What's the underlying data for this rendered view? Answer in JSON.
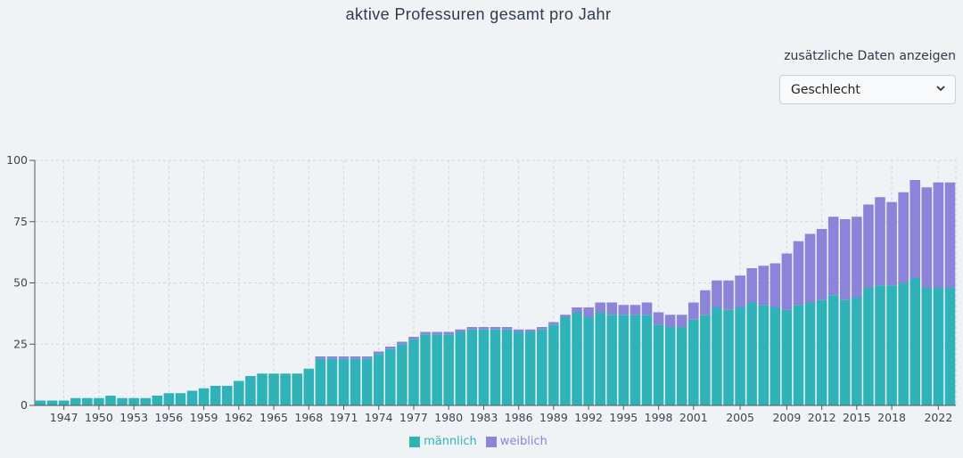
{
  "title": "aktive Professuren gesamt pro Jahr",
  "controls": {
    "label": "zusätzliche Daten anzeigen",
    "select_value": "Geschlecht",
    "select_icon": "chevron-down-icon"
  },
  "colors": {
    "maennlich": "#2fb3b9",
    "weiblich": "#8b84d8",
    "grid": "#cfd6dc",
    "axis": "#555555"
  },
  "chart_data": {
    "type": "bar",
    "stacked": true,
    "ylim": [
      0,
      100
    ],
    "yticks": [
      0,
      25,
      50,
      75,
      100
    ],
    "grid": true,
    "legend_position": "bottom",
    "x_tick_labels": [
      "1947",
      "1950",
      "1953",
      "1956",
      "1959",
      "1962",
      "1965",
      "1968",
      "1971",
      "1974",
      "1977",
      "1980",
      "1983",
      "1986",
      "1989",
      "1992",
      "1995",
      "1998",
      "2001",
      "2005",
      "2009",
      "2012",
      "2015",
      "2018",
      "2022"
    ],
    "categories": [
      "1945",
      "1946",
      "1947",
      "1948",
      "1949",
      "1950",
      "1951",
      "1952",
      "1953",
      "1954",
      "1955",
      "1956",
      "1957",
      "1958",
      "1959",
      "1960",
      "1961",
      "1962",
      "1963",
      "1964",
      "1965",
      "1966",
      "1967",
      "1968",
      "1969",
      "1970",
      "1971",
      "1972",
      "1973",
      "1974",
      "1975",
      "1976",
      "1977",
      "1978",
      "1979",
      "1980",
      "1981",
      "1982",
      "1983",
      "1984",
      "1985",
      "1986",
      "1987",
      "1988",
      "1989",
      "1990",
      "1991",
      "1992",
      "1993",
      "1994",
      "1995",
      "1996",
      "1997",
      "1998",
      "1999",
      "2000",
      "2001",
      "2002",
      "2003",
      "2004",
      "2005",
      "2006",
      "2007",
      "2008",
      "2009",
      "2010",
      "2011",
      "2012",
      "2013",
      "2014",
      "2015",
      "2016",
      "2017",
      "2018",
      "2019",
      "2020",
      "2021",
      "2022",
      "2023"
    ],
    "series": [
      {
        "name": "männlich",
        "values": [
          2,
          2,
          2,
          3,
          3,
          3,
          4,
          3,
          3,
          3,
          4,
          5,
          5,
          6,
          7,
          8,
          8,
          10,
          12,
          13,
          13,
          13,
          13,
          15,
          19,
          19,
          19,
          19,
          19,
          21,
          23,
          25,
          27,
          29,
          29,
          29,
          30,
          31,
          31,
          31,
          31,
          30,
          30,
          31,
          33,
          36,
          38,
          36,
          38,
          37,
          37,
          37,
          37,
          33,
          32,
          32,
          35,
          37,
          40,
          39,
          40,
          42,
          41,
          40,
          39,
          41,
          42,
          43,
          45,
          43,
          44,
          48,
          49,
          49,
          50,
          52,
          48,
          48,
          48
        ]
      },
      {
        "name": "weiblich",
        "values": [
          0,
          0,
          0,
          0,
          0,
          0,
          0,
          0,
          0,
          0,
          0,
          0,
          0,
          0,
          0,
          0,
          0,
          0,
          0,
          0,
          0,
          0,
          0,
          0,
          1,
          1,
          1,
          1,
          1,
          1,
          1,
          1,
          1,
          1,
          1,
          1,
          1,
          1,
          1,
          1,
          1,
          1,
          1,
          1,
          1,
          1,
          2,
          4,
          4,
          5,
          4,
          4,
          5,
          5,
          5,
          5,
          7,
          10,
          11,
          12,
          13,
          14,
          16,
          18,
          23,
          26,
          28,
          29,
          32,
          33,
          33,
          34,
          36,
          34,
          37,
          40,
          41,
          43,
          43
        ]
      }
    ]
  }
}
